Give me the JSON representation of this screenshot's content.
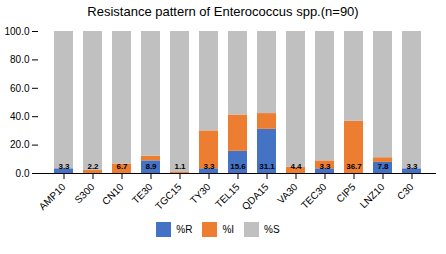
{
  "chart_data": {
    "type": "bar",
    "title": "Resistance pattern of Enterococcus spp.(n=90)",
    "categories": [
      "AMP10",
      "S300",
      "CN10",
      "TE30",
      "TGC15",
      "TY30",
      "TEL15",
      "QDA15",
      "VA30",
      "TEC30",
      "CIP5",
      "LNZ10",
      "C30"
    ],
    "series": [
      {
        "name": "%R",
        "color": "#4472c4",
        "values": [
          3.3,
          0.0,
          0.0,
          8.9,
          0.0,
          3.3,
          15.6,
          31.1,
          0.0,
          3.3,
          0.0,
          7.8,
          3.3
        ],
        "value_labels": [
          "3.3",
          null,
          null,
          "8.9",
          null,
          "3.3",
          "15.6",
          "31.1",
          null,
          "3.3",
          null,
          "7.8",
          "3.3"
        ]
      },
      {
        "name": "%I",
        "color": "#ed7d31",
        "values": [
          0.0,
          2.2,
          6.7,
          3.3,
          1.1,
          26.7,
          25.6,
          11.1,
          4.4,
          5.6,
          36.7,
          3.3,
          0.0
        ],
        "value_labels": [
          null,
          "2.2",
          "6.7",
          null,
          "1.1",
          null,
          null,
          null,
          "4.4",
          null,
          "36.7",
          null,
          null
        ]
      },
      {
        "name": "%S",
        "color": "#c0c0c0",
        "values": [
          96.7,
          97.8,
          93.3,
          87.8,
          98.9,
          70.0,
          58.8,
          57.8,
          95.6,
          91.1,
          63.3,
          88.9,
          96.7
        ]
      }
    ],
    "stacked": true,
    "data_labels": true,
    "ylim": [
      0,
      100
    ],
    "yticks": [
      {
        "value": 0,
        "label": "0.0"
      },
      {
        "value": 20,
        "label": "20.0"
      },
      {
        "value": 40,
        "label": "40.0"
      },
      {
        "value": 60,
        "label": "60.0"
      },
      {
        "value": 80,
        "label": "80.0"
      },
      {
        "value": 100,
        "label": "100.0"
      }
    ],
    "grid": false,
    "legend": "bottom"
  }
}
